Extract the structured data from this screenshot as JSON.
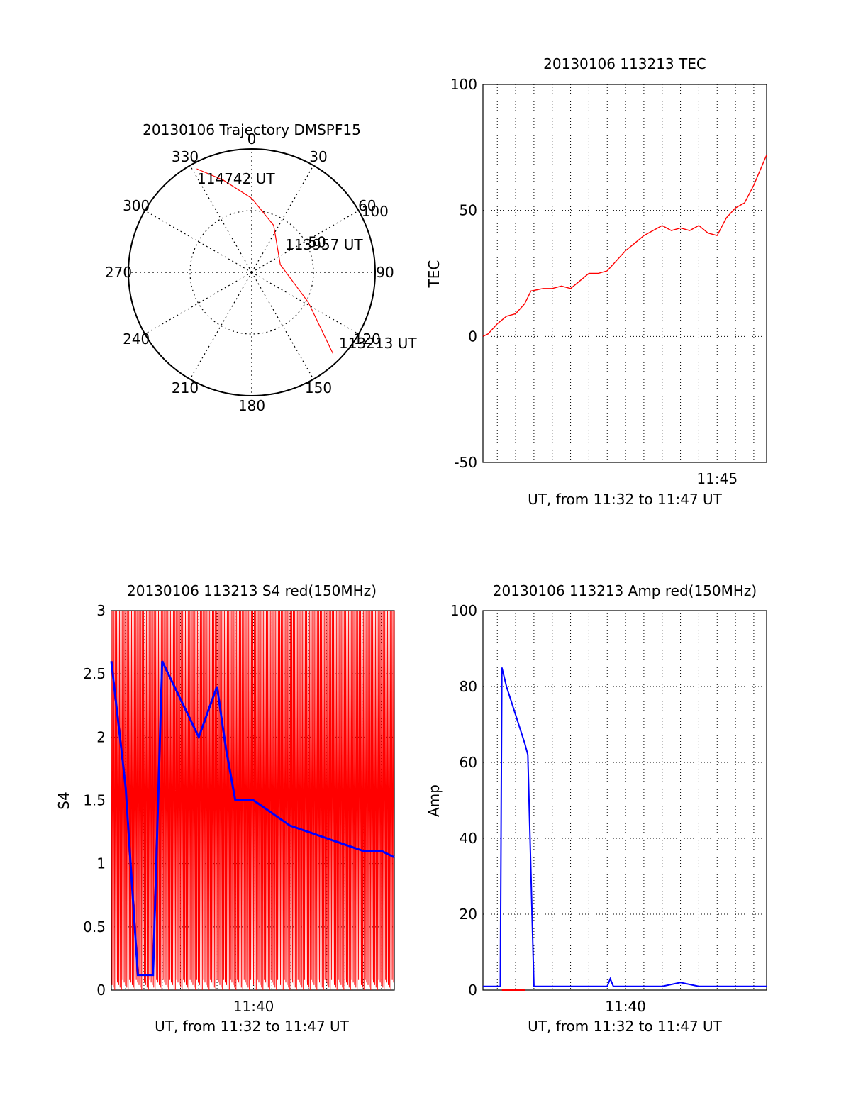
{
  "colors": {
    "background": "#ffffff",
    "axis": "#000000",
    "series_red": "#ff0000",
    "series_blue": "#0000ff"
  },
  "chart_data": [
    {
      "id": "trajectory",
      "type": "scatter",
      "polar": true,
      "title": "20130106 Trajectory DMSPF15",
      "azimuth_labels": [
        "0",
        "30",
        "60",
        "90",
        "120",
        "150",
        "180",
        "210",
        "240",
        "270",
        "300",
        "330"
      ],
      "radius_labels": [
        "50",
        "100"
      ],
      "rlim": [
        0,
        100
      ],
      "grid": true,
      "series": [
        {
          "color": "#ff0000",
          "points": [
            {
              "az": 332,
              "zen": 95
            },
            {
              "az": 343,
              "zen": 78
            },
            {
              "az": 360,
              "zen": 60
            },
            {
              "az": 25,
              "zen": 42
            },
            {
              "az": 75,
              "zen": 24
            },
            {
              "az": 118,
              "zen": 52
            },
            {
              "az": 135,
              "zen": 93
            }
          ]
        }
      ],
      "annotations": [
        "114742 UT",
        "113957 UT",
        "113213 UT"
      ]
    },
    {
      "id": "tec",
      "type": "line",
      "title": "20130106 113213 TEC",
      "xlabel": "UT, from 11:32 to 11:47 UT",
      "ylabel": "TEC",
      "ylim": [
        -50,
        100
      ],
      "xlim": [
        "11:32:13",
        "11:47:42"
      ],
      "yticks": [
        "100",
        "50",
        "0",
        "-50"
      ],
      "xticks": [
        "11:45"
      ],
      "grid": true,
      "series": [
        {
          "color": "#ff0000",
          "x": [
            "11:32:13",
            "11:32:30",
            "11:33:00",
            "11:33:30",
            "11:34:00",
            "11:34:30",
            "11:34:50",
            "11:35:30",
            "11:36:00",
            "11:36:30",
            "11:37:00",
            "11:37:30",
            "11:38:00",
            "11:38:30",
            "11:39:00",
            "11:39:30",
            "11:40:00",
            "11:40:30",
            "11:41:00",
            "11:41:30",
            "11:42:00",
            "11:42:30",
            "11:43:00",
            "11:43:30",
            "11:44:00",
            "11:44:30",
            "11:45:00",
            "11:45:30",
            "11:46:00",
            "11:46:30",
            "11:47:00",
            "11:47:42"
          ],
          "values": [
            0,
            1,
            5,
            8,
            9,
            13,
            18,
            19,
            19,
            20,
            19,
            22,
            25,
            25,
            26,
            30,
            34,
            37,
            40,
            42,
            44,
            42,
            43,
            42,
            44,
            41,
            40,
            47,
            51,
            53,
            60,
            72
          ]
        }
      ]
    },
    {
      "id": "s4",
      "type": "line",
      "title": "20130106 113213 S4 red(150MHz)",
      "xlabel": "UT, from 11:32 to 11:47 UT",
      "ylabel": "S4",
      "ylim": [
        0,
        3
      ],
      "xlim": [
        "11:32:13",
        "11:47:42"
      ],
      "yticks": [
        "3",
        "2.5",
        "2",
        "1.5",
        "1",
        "0.5",
        "0"
      ],
      "xticks": [
        "11:40"
      ],
      "grid": true,
      "series": [
        {
          "color": "#ff0000",
          "style": "dense oscillation 0 to 3",
          "x_range": [
            "11:32:13",
            "11:47:42"
          ],
          "values_range": [
            0,
            3
          ]
        },
        {
          "color": "#0000ff",
          "x": [
            "11:32:13",
            "11:33:00",
            "11:33:40",
            "11:34:30",
            "11:35:00",
            "11:36:00",
            "11:37:00",
            "11:38:00",
            "11:38:30",
            "11:39:00",
            "11:40:00",
            "11:41:00",
            "11:42:00",
            "11:43:00",
            "11:44:00",
            "11:45:00",
            "11:46:00",
            "11:47:00",
            "11:47:42"
          ],
          "values": [
            2.6,
            1.6,
            0.12,
            0.12,
            2.6,
            2.3,
            2.0,
            2.4,
            1.9,
            1.5,
            1.5,
            1.4,
            1.3,
            1.25,
            1.2,
            1.15,
            1.1,
            1.1,
            1.05
          ]
        }
      ]
    },
    {
      "id": "amp",
      "type": "line",
      "title": "20130106 113213 Amp red(150MHz)",
      "xlabel": "UT, from 11:32 to 11:47 UT",
      "ylabel": "Amp",
      "ylim": [
        0,
        100
      ],
      "xlim": [
        "11:32:13",
        "11:47:42"
      ],
      "yticks": [
        "100",
        "80",
        "60",
        "40",
        "20",
        "0"
      ],
      "xticks": [
        "11:40"
      ],
      "grid": true,
      "series": [
        {
          "color": "#0000ff",
          "x": [
            "11:32:13",
            "11:33:10",
            "11:33:15",
            "11:33:30",
            "11:33:50",
            "11:34:10",
            "11:34:30",
            "11:34:40",
            "11:35:00",
            "11:36:00",
            "11:38:00",
            "11:39:00",
            "11:39:10",
            "11:39:20",
            "11:40:00",
            "11:42:00",
            "11:43:00",
            "11:44:00",
            "11:45:00",
            "11:46:00",
            "11:47:42"
          ],
          "values": [
            1,
            1,
            85,
            80,
            75,
            70,
            65,
            62,
            1,
            1,
            1,
            1,
            3,
            1,
            1,
            1,
            2,
            1,
            1,
            1,
            1
          ]
        },
        {
          "color": "#ff0000",
          "x": [
            "11:33:15",
            "11:34:30"
          ],
          "values": [
            0,
            0
          ]
        }
      ]
    }
  ]
}
